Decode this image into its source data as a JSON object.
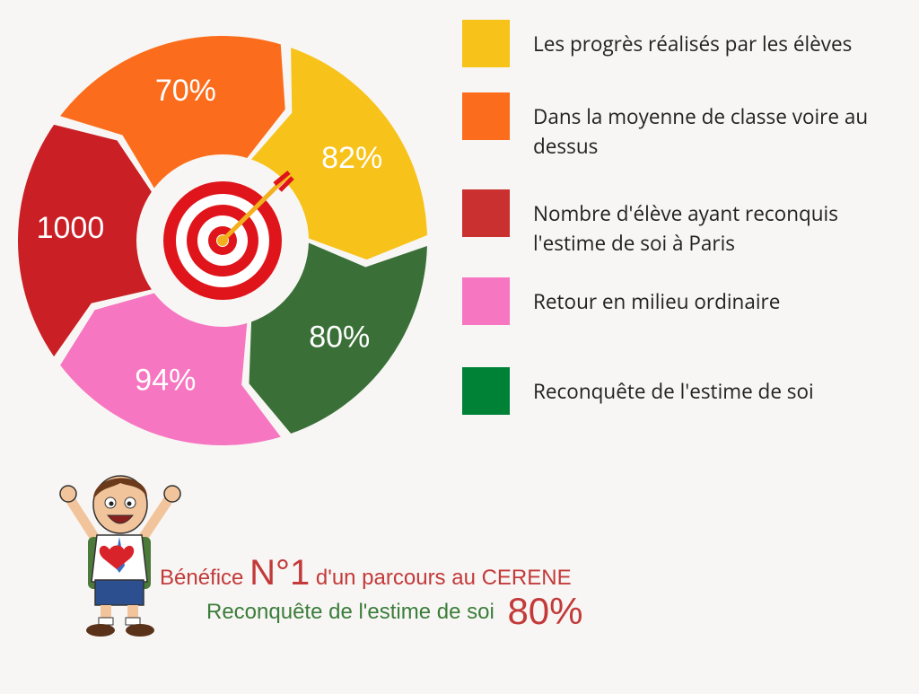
{
  "chart_data": {
    "type": "pie",
    "categories": [
      "Les progrès réalisés par les élèves",
      "Dans la moyenne de classe voire au dessus",
      "Nombre d'élève ayant reconquis l'estime de soi à Paris",
      "Retour en milieu ordinaire",
      "Reconquête de l'estime de soi"
    ],
    "segments": [
      {
        "value_label": "82%",
        "color": "#f7c21a"
      },
      {
        "value_label": "80%",
        "color": "#3a7038"
      },
      {
        "value_label": "94%",
        "color": "#f676c1"
      },
      {
        "value_label": "1000",
        "color": "#c91f25"
      },
      {
        "value_label": "70%",
        "color": "#fb6d1c"
      }
    ]
  },
  "legend": [
    {
      "label": "Les progrès réalisés par les élèves",
      "color": "#f7c21a"
    },
    {
      "label": "Dans la moyenne de classe voire au dessus",
      "color": "#fb6d1c"
    },
    {
      "label": "Nombre d'élève ayant reconquis l'estime de soi à Paris",
      "color": "#c9302f"
    },
    {
      "label": "Retour en milieu ordinaire",
      "color": "#f676c1"
    },
    {
      "label": "Reconquête de l'estime de soi",
      "color": "#008236"
    }
  ],
  "footer": {
    "line1_prefix": "Bénéfice",
    "line1_big": "N°1",
    "line1_suffix": "d'un parcours au CERENE",
    "line2_text": "Reconquête de l'estime de soi",
    "line2_pct": "80%"
  },
  "icons": [
    "target-icon",
    "arrow-icon",
    "boy-illustration"
  ]
}
